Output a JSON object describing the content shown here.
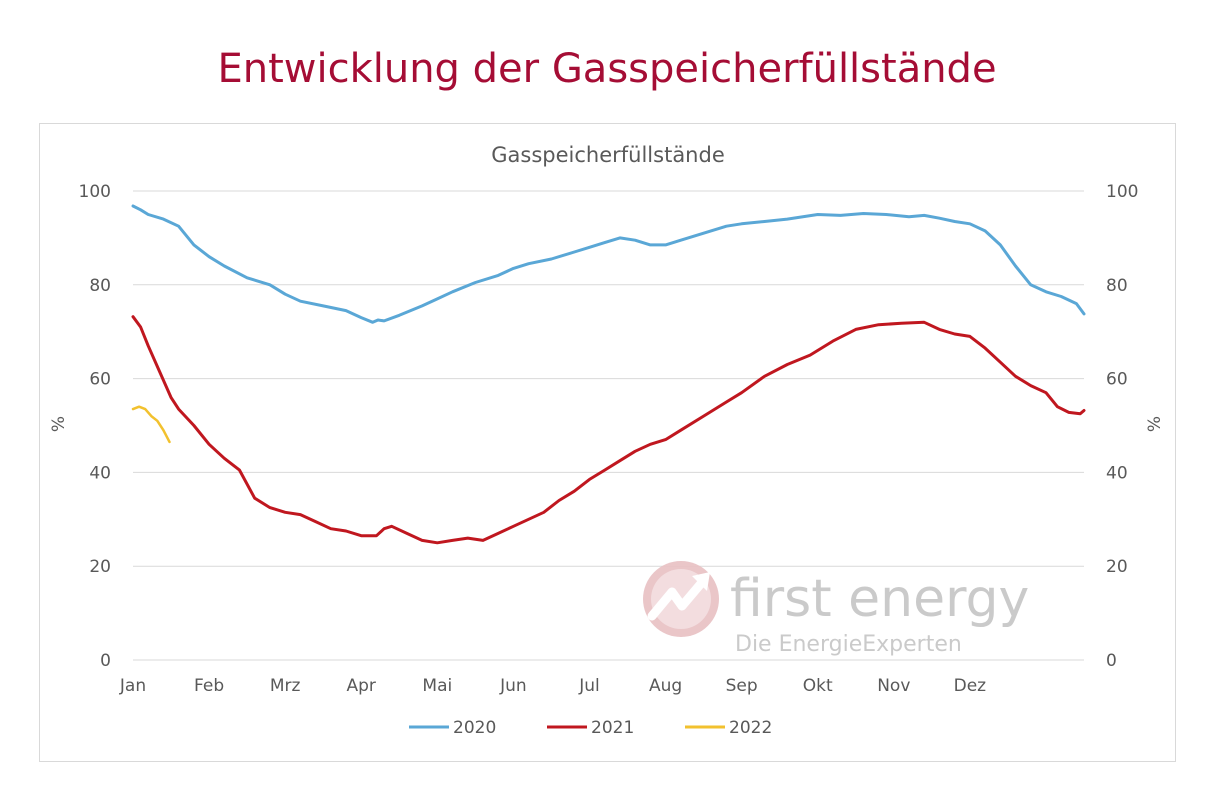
{
  "page": {
    "title": "Entwicklung der Gasspeicherfüllstände"
  },
  "watermark": {
    "brand": "first energy",
    "tagline": "Die EnergieExperten",
    "icon": "first-energy-logo-icon"
  },
  "colors": {
    "title": "#a50d35",
    "series_2020": "#5aa7d6",
    "series_2021": "#c0171f",
    "series_2022": "#f2c12e",
    "grid": "#d9d9d9",
    "text": "#595959"
  },
  "chart_data": {
    "type": "line",
    "title": "Gasspeicherfüllstände",
    "ylabel": "%",
    "ylabel_right": "%",
    "ylim": [
      0,
      100
    ],
    "yticks": [
      0,
      20,
      40,
      60,
      80,
      100
    ],
    "xlim": [
      0,
      12
    ],
    "x_unit": "months since 1 Jan",
    "month_labels": [
      "Jan",
      "Feb",
      "Mrz",
      "Apr",
      "Mai",
      "Jun",
      "Jul",
      "Aug",
      "Sep",
      "Okt",
      "Nov",
      "Dez"
    ],
    "grid": true,
    "legend_position": "bottom",
    "series": [
      {
        "name": "2020",
        "color": "#5aa7d6",
        "points": [
          [
            0.0,
            96.8
          ],
          [
            0.1,
            96.0
          ],
          [
            0.2,
            95.0
          ],
          [
            0.4,
            94.0
          ],
          [
            0.6,
            92.5
          ],
          [
            0.8,
            88.5
          ],
          [
            1.0,
            86.0
          ],
          [
            1.2,
            84.0
          ],
          [
            1.5,
            81.5
          ],
          [
            1.8,
            80.0
          ],
          [
            2.0,
            78.0
          ],
          [
            2.2,
            76.5
          ],
          [
            2.5,
            75.5
          ],
          [
            2.8,
            74.5
          ],
          [
            3.0,
            73.0
          ],
          [
            3.15,
            72.0
          ],
          [
            3.22,
            72.5
          ],
          [
            3.3,
            72.3
          ],
          [
            3.5,
            73.5
          ],
          [
            3.8,
            75.5
          ],
          [
            4.0,
            77.0
          ],
          [
            4.2,
            78.5
          ],
          [
            4.5,
            80.5
          ],
          [
            4.8,
            82.0
          ],
          [
            5.0,
            83.5
          ],
          [
            5.2,
            84.5
          ],
          [
            5.5,
            85.5
          ],
          [
            5.8,
            87.0
          ],
          [
            6.0,
            88.0
          ],
          [
            6.2,
            89.0
          ],
          [
            6.4,
            90.0
          ],
          [
            6.6,
            89.5
          ],
          [
            6.8,
            88.5
          ],
          [
            7.0,
            88.5
          ],
          [
            7.2,
            89.5
          ],
          [
            7.5,
            91.0
          ],
          [
            7.8,
            92.5
          ],
          [
            8.0,
            93.0
          ],
          [
            8.3,
            93.5
          ],
          [
            8.6,
            94.0
          ],
          [
            9.0,
            95.0
          ],
          [
            9.3,
            94.8
          ],
          [
            9.6,
            95.2
          ],
          [
            9.9,
            95.0
          ],
          [
            10.2,
            94.5
          ],
          [
            10.4,
            94.8
          ],
          [
            10.6,
            94.2
          ],
          [
            10.8,
            93.5
          ],
          [
            11.0,
            93.0
          ],
          [
            11.2,
            91.5
          ],
          [
            11.4,
            88.5
          ],
          [
            11.6,
            84.0
          ],
          [
            11.8,
            80.0
          ],
          [
            12.0,
            78.5
          ],
          [
            12.2,
            77.5
          ],
          [
            12.4,
            76.0
          ],
          [
            12.5,
            73.8
          ]
        ]
      },
      {
        "name": "2021",
        "color": "#c0171f",
        "points": [
          [
            0.0,
            73.2
          ],
          [
            0.1,
            71.0
          ],
          [
            0.2,
            67.0
          ],
          [
            0.35,
            61.5
          ],
          [
            0.5,
            56.0
          ],
          [
            0.6,
            53.5
          ],
          [
            0.8,
            50.0
          ],
          [
            1.0,
            46.0
          ],
          [
            1.2,
            43.0
          ],
          [
            1.4,
            40.5
          ],
          [
            1.6,
            34.5
          ],
          [
            1.8,
            32.5
          ],
          [
            2.0,
            31.5
          ],
          [
            2.2,
            31.0
          ],
          [
            2.4,
            29.5
          ],
          [
            2.6,
            28.0
          ],
          [
            2.8,
            27.5
          ],
          [
            3.0,
            26.5
          ],
          [
            3.2,
            26.5
          ],
          [
            3.3,
            28.0
          ],
          [
            3.4,
            28.5
          ],
          [
            3.6,
            27.0
          ],
          [
            3.8,
            25.5
          ],
          [
            4.0,
            25.0
          ],
          [
            4.2,
            25.5
          ],
          [
            4.4,
            26.0
          ],
          [
            4.6,
            25.5
          ],
          [
            4.8,
            27.0
          ],
          [
            5.0,
            28.5
          ],
          [
            5.2,
            30.0
          ],
          [
            5.4,
            31.5
          ],
          [
            5.6,
            34.0
          ],
          [
            5.8,
            36.0
          ],
          [
            6.0,
            38.5
          ],
          [
            6.2,
            40.5
          ],
          [
            6.4,
            42.5
          ],
          [
            6.6,
            44.5
          ],
          [
            6.8,
            46.0
          ],
          [
            7.0,
            47.0
          ],
          [
            7.2,
            49.0
          ],
          [
            7.5,
            52.0
          ],
          [
            7.8,
            55.0
          ],
          [
            8.0,
            57.0
          ],
          [
            8.3,
            60.5
          ],
          [
            8.6,
            63.0
          ],
          [
            8.9,
            65.0
          ],
          [
            9.2,
            68.0
          ],
          [
            9.5,
            70.5
          ],
          [
            9.8,
            71.5
          ],
          [
            10.1,
            71.8
          ],
          [
            10.4,
            72.0
          ],
          [
            10.6,
            70.5
          ],
          [
            10.8,
            69.5
          ],
          [
            11.0,
            69.0
          ],
          [
            11.2,
            66.5
          ],
          [
            11.4,
            63.5
          ],
          [
            11.6,
            60.5
          ],
          [
            11.8,
            58.5
          ],
          [
            12.0,
            57.0
          ],
          [
            12.15,
            54.0
          ],
          [
            12.3,
            52.8
          ],
          [
            12.45,
            52.5
          ],
          [
            12.5,
            53.2
          ]
        ]
      },
      {
        "name": "2022",
        "color": "#f2c12e",
        "points": [
          [
            0.0,
            53.5
          ],
          [
            0.08,
            54.0
          ],
          [
            0.16,
            53.5
          ],
          [
            0.24,
            52.0
          ],
          [
            0.32,
            51.0
          ],
          [
            0.4,
            49.0
          ],
          [
            0.48,
            46.5
          ]
        ]
      }
    ]
  }
}
